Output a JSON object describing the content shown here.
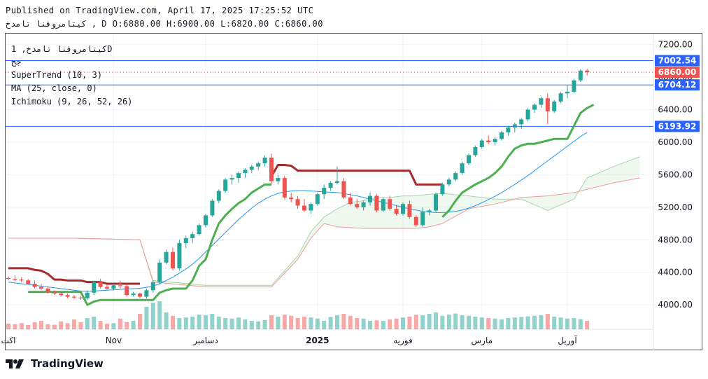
{
  "header": {
    "published": "Published on TradingView.com, April 17, 2025 17:25:52 UTC",
    "ohlc_line": "كيتامروفنا تامدخ , D O:6880.00 H:6900.00 L:6820.00 C:6860.00"
  },
  "legend": {
    "symbol": "كيتامروفنا تامدخ, 1D",
    "sub": "جح",
    "supertrend": "SuperTrend (10, 3)",
    "ma": "MA (25, close, 0)",
    "ichimoku": "Ichimoku (9, 26, 52, 26)"
  },
  "footer": {
    "brand": "TradingView"
  },
  "colors": {
    "up": "#26a69a",
    "down": "#ef5350",
    "supertrend_up": "#4caf50",
    "supertrend_down": "#a52c2c",
    "ma": "#2196f3",
    "hline": "#2962ff",
    "price_label": "#ef5350"
  },
  "chart_data": {
    "type": "candlestick",
    "ylim": [
      3700,
      7300
    ],
    "y_ticks": [
      "7200.00",
      "6800.00",
      "6400.00",
      "6000.00",
      "5600.00",
      "5200.00",
      "4800.00",
      "4400.00",
      "4000.00"
    ],
    "y_tick_values": [
      7200,
      6800,
      6400,
      6000,
      5600,
      5200,
      4800,
      4400,
      4000
    ],
    "x_labels": [
      {
        "label": "اكت",
        "i": 0
      },
      {
        "label": "Nov",
        "i": 16
      },
      {
        "label": "دسامبر",
        "i": 30
      },
      {
        "label": "2025",
        "i": 47
      },
      {
        "label": "فوريه",
        "i": 60
      },
      {
        "label": "مارس",
        "i": 72
      },
      {
        "label": "آوريل",
        "i": 85
      }
    ],
    "price_levels": [
      {
        "label": "7002.54",
        "value": 7002.54
      },
      {
        "label": "6704.12",
        "value": 6704.12
      },
      {
        "label": "6193.92",
        "value": 6193.92
      }
    ],
    "last_price": {
      "label": "6860.00",
      "value": 6860
    },
    "candles": [
      [
        4330,
        4350,
        4300,
        4320
      ],
      [
        4320,
        4360,
        4290,
        4310
      ],
      [
        4310,
        4340,
        4280,
        4300
      ],
      [
        4300,
        4320,
        4250,
        4260
      ],
      [
        4260,
        4300,
        4200,
        4220
      ],
      [
        4220,
        4260,
        4180,
        4200
      ],
      [
        4200,
        4220,
        4140,
        4160
      ],
      [
        4160,
        4180,
        4120,
        4140
      ],
      [
        4140,
        4160,
        4100,
        4120
      ],
      [
        4120,
        4140,
        4080,
        4100
      ],
      [
        4100,
        4120,
        4070,
        4090
      ],
      [
        4090,
        4110,
        4060,
        4080
      ],
      [
        4080,
        4180,
        4060,
        4150
      ],
      [
        4150,
        4300,
        4120,
        4280
      ],
      [
        4280,
        4320,
        4200,
        4220
      ],
      [
        4220,
        4250,
        4180,
        4200
      ],
      [
        4200,
        4260,
        4180,
        4240
      ],
      [
        4240,
        4300,
        4200,
        4230
      ],
      [
        4230,
        4250,
        4100,
        4120
      ],
      [
        4120,
        4160,
        4100,
        4140
      ],
      [
        4140,
        4150,
        4080,
        4100
      ],
      [
        4100,
        4200,
        4080,
        4180
      ],
      [
        4180,
        4300,
        4150,
        4280
      ],
      [
        4280,
        4560,
        4250,
        4520
      ],
      [
        4520,
        4680,
        4500,
        4650
      ],
      [
        4650,
        4700,
        4420,
        4450
      ],
      [
        4450,
        4800,
        4420,
        4760
      ],
      [
        4760,
        4850,
        4700,
        4820
      ],
      [
        4820,
        4900,
        4760,
        4870
      ],
      [
        4870,
        5000,
        4850,
        4980
      ],
      [
        4980,
        5120,
        4950,
        5100
      ],
      [
        5100,
        5300,
        5080,
        5280
      ],
      [
        5280,
        5420,
        5250,
        5400
      ],
      [
        5400,
        5560,
        5380,
        5540
      ],
      [
        5540,
        5600,
        5480,
        5560
      ],
      [
        5560,
        5640,
        5500,
        5620
      ],
      [
        5620,
        5680,
        5560,
        5660
      ],
      [
        5660,
        5720,
        5620,
        5700
      ],
      [
        5700,
        5760,
        5660,
        5740
      ],
      [
        5740,
        5840,
        5700,
        5810
      ],
      [
        5810,
        5860,
        5480,
        5520
      ],
      [
        5520,
        5600,
        5480,
        5560
      ],
      [
        5560,
        5580,
        5300,
        5320
      ],
      [
        5320,
        5380,
        5260,
        5300
      ],
      [
        5300,
        5340,
        5180,
        5220
      ],
      [
        5220,
        5300,
        5140,
        5160
      ],
      [
        5160,
        5260,
        5120,
        5240
      ],
      [
        5240,
        5380,
        5220,
        5360
      ],
      [
        5360,
        5480,
        5300,
        5440
      ],
      [
        5440,
        5520,
        5400,
        5500
      ],
      [
        5500,
        5700,
        5480,
        5520
      ],
      [
        5520,
        5560,
        5300,
        5320
      ],
      [
        5320,
        5380,
        5220,
        5240
      ],
      [
        5240,
        5300,
        5180,
        5200
      ],
      [
        5200,
        5280,
        5160,
        5260
      ],
      [
        5260,
        5380,
        5220,
        5340
      ],
      [
        5340,
        5360,
        5140,
        5160
      ],
      [
        5160,
        5320,
        5140,
        5300
      ],
      [
        5300,
        5340,
        5160,
        5180
      ],
      [
        5180,
        5220,
        5100,
        5120
      ],
      [
        5120,
        5260,
        5100,
        5240
      ],
      [
        5240,
        5280,
        5060,
        5080
      ],
      [
        5080,
        5100,
        4960,
        4980
      ],
      [
        4980,
        5200,
        4960,
        5140
      ],
      [
        5140,
        5180,
        5100,
        5160
      ],
      [
        5160,
        5380,
        5140,
        5360
      ],
      [
        5360,
        5500,
        5340,
        5480
      ],
      [
        5480,
        5560,
        5460,
        5540
      ],
      [
        5540,
        5640,
        5520,
        5620
      ],
      [
        5620,
        5760,
        5600,
        5740
      ],
      [
        5740,
        5860,
        5720,
        5840
      ],
      [
        5840,
        5960,
        5820,
        5940
      ],
      [
        5940,
        6040,
        5920,
        6020
      ],
      [
        6020,
        6080,
        5980,
        6000
      ],
      [
        6000,
        6060,
        5960,
        6040
      ],
      [
        6040,
        6140,
        6020,
        6120
      ],
      [
        6120,
        6200,
        6080,
        6180
      ],
      [
        6180,
        6240,
        6120,
        6220
      ],
      [
        6220,
        6300,
        6160,
        6280
      ],
      [
        6280,
        6420,
        6260,
        6400
      ],
      [
        6400,
        6480,
        6360,
        6460
      ],
      [
        6460,
        6560,
        6420,
        6540
      ],
      [
        6540,
        6600,
        6220,
        6380
      ],
      [
        6380,
        6520,
        6360,
        6500
      ],
      [
        6500,
        6620,
        6480,
        6600
      ],
      [
        6600,
        6700,
        6540,
        6620
      ],
      [
        6620,
        6780,
        6600,
        6760
      ],
      [
        6760,
        6900,
        6740,
        6880
      ],
      [
        6880,
        6900,
        6820,
        6860
      ]
    ],
    "ma": [
      4280,
      4270,
      4260,
      4250,
      4240,
      4230,
      4220,
      4210,
      4200,
      4190,
      4180,
      4170,
      4165,
      4170,
      4175,
      4180,
      4185,
      4190,
      4195,
      4200,
      4205,
      4215,
      4230,
      4260,
      4300,
      4340,
      4390,
      4440,
      4500,
      4570,
      4650,
      4730,
      4810,
      4890,
      4970,
      5050,
      5120,
      5190,
      5250,
      5300,
      5340,
      5370,
      5390,
      5400,
      5405,
      5405,
      5400,
      5395,
      5390,
      5385,
      5380,
      5370,
      5355,
      5340,
      5320,
      5300,
      5280,
      5260,
      5240,
      5220,
      5200,
      5180,
      5165,
      5150,
      5140,
      5135,
      5135,
      5140,
      5150,
      5165,
      5190,
      5220,
      5255,
      5295,
      5335,
      5380,
      5430,
      5480,
      5535,
      5590,
      5650,
      5710,
      5770,
      5830,
      5890,
      5950,
      6010,
      6070,
      6120
    ],
    "supertrend_down": [
      [
        0,
        4450
      ],
      [
        1,
        4450
      ],
      [
        2,
        4450
      ],
      [
        3,
        4450
      ],
      [
        4,
        4430
      ],
      [
        5,
        4420
      ],
      [
        6,
        4380
      ],
      [
        7,
        4310
      ],
      [
        8,
        4310
      ],
      [
        9,
        4300
      ],
      [
        10,
        4300
      ],
      [
        11,
        4300
      ],
      [
        12,
        4280
      ],
      [
        13,
        4280
      ],
      [
        14,
        4280
      ],
      [
        15,
        4260
      ],
      [
        16,
        4260
      ],
      [
        17,
        4260
      ],
      [
        18,
        4260
      ],
      [
        19,
        4260
      ],
      [
        20,
        4260
      ]
    ],
    "supertrend_down2": [
      [
        40,
        5580
      ],
      [
        41,
        5720
      ],
      [
        42,
        5720
      ],
      [
        43,
        5710
      ],
      [
        44,
        5650
      ],
      [
        45,
        5650
      ],
      [
        46,
        5650
      ],
      [
        47,
        5650
      ],
      [
        48,
        5650
      ],
      [
        49,
        5650
      ],
      [
        50,
        5650
      ],
      [
        51,
        5650
      ],
      [
        52,
        5650
      ],
      [
        53,
        5650
      ],
      [
        54,
        5650
      ],
      [
        55,
        5650
      ],
      [
        56,
        5650
      ],
      [
        57,
        5650
      ],
      [
        58,
        5650
      ],
      [
        59,
        5650
      ],
      [
        60,
        5650
      ],
      [
        61,
        5650
      ],
      [
        62,
        5480
      ],
      [
        63,
        5480
      ],
      [
        64,
        5480
      ],
      [
        65,
        5480
      ],
      [
        66,
        5480
      ]
    ],
    "supertrend_up": [
      [
        3,
        4160
      ],
      [
        4,
        4160
      ],
      [
        5,
        4160
      ],
      [
        6,
        4160
      ],
      [
        7,
        4160
      ],
      [
        8,
        4160
      ],
      [
        9,
        4160
      ],
      [
        10,
        4160
      ],
      [
        11,
        4160
      ],
      [
        12,
        4000
      ],
      [
        13,
        4040
      ],
      [
        14,
        4060
      ],
      [
        15,
        4060
      ],
      [
        16,
        4060
      ],
      [
        17,
        4060
      ],
      [
        18,
        4060
      ],
      [
        19,
        4060
      ],
      [
        20,
        4060
      ],
      [
        21,
        4060
      ],
      [
        22,
        4060
      ],
      [
        23,
        4150
      ],
      [
        24,
        4180
      ],
      [
        25,
        4200
      ],
      [
        26,
        4200
      ],
      [
        27,
        4200
      ],
      [
        28,
        4300
      ],
      [
        29,
        4480
      ],
      [
        30,
        4560
      ],
      [
        31,
        4800
      ],
      [
        32,
        5000
      ],
      [
        33,
        5100
      ],
      [
        34,
        5180
      ],
      [
        35,
        5250
      ],
      [
        36,
        5300
      ],
      [
        37,
        5380
      ],
      [
        38,
        5430
      ],
      [
        39,
        5480
      ],
      [
        40,
        5480
      ]
    ],
    "supertrend_up2": [
      [
        66,
        5080
      ],
      [
        67,
        5160
      ],
      [
        68,
        5280
      ],
      [
        69,
        5380
      ],
      [
        70,
        5430
      ],
      [
        71,
        5480
      ],
      [
        72,
        5520
      ],
      [
        73,
        5560
      ],
      [
        74,
        5620
      ],
      [
        75,
        5700
      ],
      [
        76,
        5820
      ],
      [
        77,
        5920
      ],
      [
        78,
        5960
      ],
      [
        79,
        5980
      ],
      [
        80,
        5980
      ],
      [
        81,
        6000
      ],
      [
        82,
        6020
      ],
      [
        83,
        6040
      ],
      [
        84,
        6040
      ],
      [
        85,
        6040
      ],
      [
        86,
        6200
      ],
      [
        87,
        6360
      ],
      [
        88,
        6420
      ],
      [
        89,
        6460
      ]
    ],
    "kumo_a": [
      [
        0,
        4820
      ],
      [
        10,
        4820
      ],
      [
        20,
        4800
      ],
      [
        22,
        4300
      ],
      [
        30,
        4240
      ],
      [
        40,
        4240
      ],
      [
        44,
        4600
      ],
      [
        46,
        4900
      ],
      [
        48,
        5080
      ],
      [
        50,
        5180
      ],
      [
        52,
        5260
      ],
      [
        54,
        5280
      ],
      [
        56,
        5320
      ],
      [
        58,
        5320
      ],
      [
        60,
        5340
      ],
      [
        62,
        5340
      ],
      [
        64,
        5360
      ],
      [
        66,
        5370
      ],
      [
        70,
        5340
      ],
      [
        74,
        5300
      ],
      [
        78,
        5300
      ],
      [
        82,
        5160
      ],
      [
        86,
        5300
      ],
      [
        88,
        5560
      ],
      [
        92,
        5700
      ],
      [
        96,
        5820
      ]
    ],
    "kumo_b": [
      [
        0,
        4820
      ],
      [
        10,
        4820
      ],
      [
        20,
        4800
      ],
      [
        22,
        4280
      ],
      [
        30,
        4220
      ],
      [
        40,
        4220
      ],
      [
        44,
        4560
      ],
      [
        46,
        4820
      ],
      [
        48,
        5000
      ],
      [
        50,
        4960
      ],
      [
        52,
        4950
      ],
      [
        54,
        4940
      ],
      [
        56,
        4940
      ],
      [
        58,
        4940
      ],
      [
        60,
        4940
      ],
      [
        62,
        4940
      ],
      [
        64,
        4960
      ],
      [
        66,
        5000
      ],
      [
        70,
        5180
      ],
      [
        74,
        5240
      ],
      [
        78,
        5320
      ],
      [
        82,
        5340
      ],
      [
        86,
        5380
      ],
      [
        88,
        5420
      ],
      [
        92,
        5500
      ],
      [
        96,
        5560
      ]
    ],
    "volume": [
      20,
      18,
      22,
      15,
      25,
      30,
      18,
      16,
      28,
      22,
      35,
      25,
      40,
      45,
      30,
      20,
      22,
      38,
      25,
      30,
      55,
      80,
      95,
      100,
      60,
      48,
      40,
      42,
      45,
      52,
      50,
      55,
      45,
      40,
      38,
      42,
      35,
      30,
      28,
      33,
      50,
      45,
      52,
      48,
      40,
      45,
      42,
      38,
      30,
      44,
      50,
      55,
      48,
      40,
      38,
      30,
      32,
      30,
      35,
      38,
      42,
      45,
      52,
      50,
      55,
      60,
      48,
      52,
      56,
      50,
      48,
      45,
      42,
      40,
      38,
      35,
      40,
      42,
      44,
      46,
      48,
      50,
      55,
      45,
      42,
      38,
      40,
      36,
      30
    ]
  }
}
